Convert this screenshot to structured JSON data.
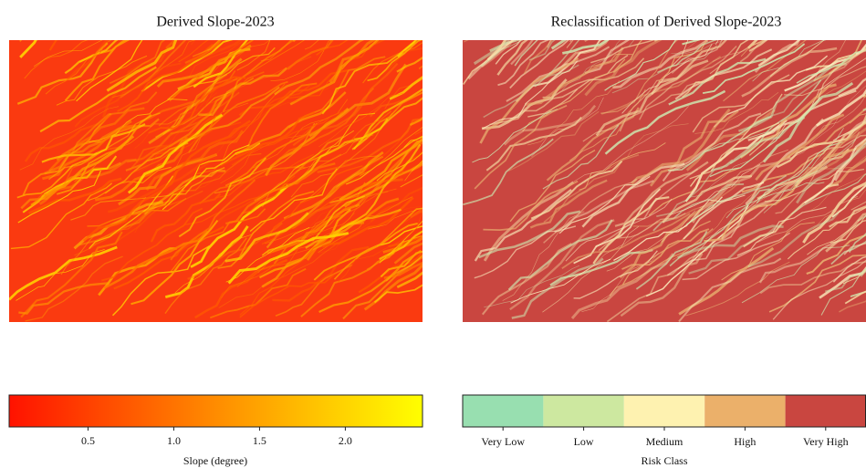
{
  "panels": [
    {
      "title": "Derived Slope-2023",
      "colorbar": {
        "label": "Slope (degree)",
        "lim": [
          0.04,
          2.45
        ],
        "ticks": [
          0.5,
          {
            "value": 1,
            "label": "1.0"
          },
          1.5,
          {
            "value": 2,
            "label": "2.0"
          }
        ],
        "colors": [
          "#ff1200",
          "#ff8c00",
          "#ffff00"
        ]
      }
    },
    {
      "title": "Reclassification of Derived Slope-2023",
      "legend": {
        "label": "Risk Class",
        "classes": [
          {
            "name": "Very Low",
            "color": "#98dfb0"
          },
          {
            "name": "Low",
            "color": "#cde8a0"
          },
          {
            "name": "Medium",
            "color": "#fef2b0"
          },
          {
            "name": "High",
            "color": "#ebb06a"
          },
          {
            "name": "Very High",
            "color": "#c94640"
          }
        ]
      }
    }
  ]
}
